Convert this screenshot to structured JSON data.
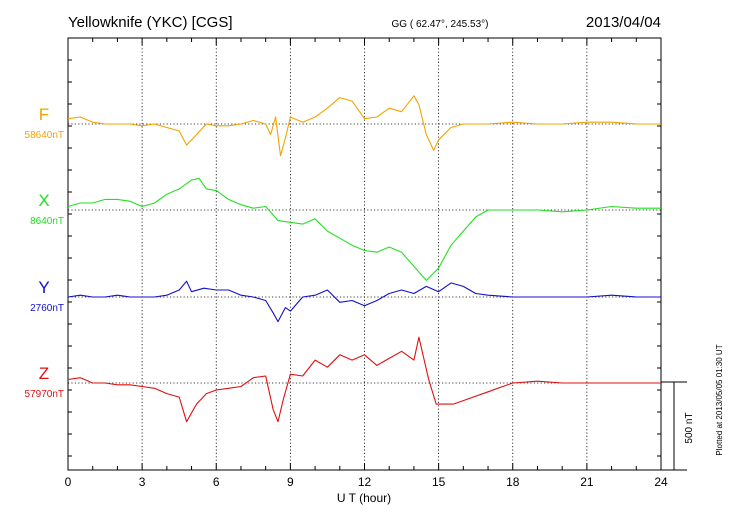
{
  "header": {
    "station": "Yellowknife (YKC)  [CGS]",
    "coords": "GG ( 62.47°, 245.53°)",
    "date": "2013/04/04"
  },
  "plotted_note": "Plotted at 2013/05/05 01:30 UT",
  "scale_bar_label": "500 nT",
  "chart_data": {
    "type": "line",
    "xlabel": "U T (hour)",
    "xlim": [
      0,
      24
    ],
    "x_ticks": [
      "0",
      "3",
      "6",
      "9",
      "12",
      "15",
      "18",
      "21",
      "24"
    ],
    "y_unit": "nT",
    "scale_bar_nT": 500,
    "grid": true,
    "series": [
      {
        "name": "F",
        "baseline_label": "58640nT",
        "color": "#f4a300",
        "x": [
          0,
          0.5,
          1,
          1.5,
          2,
          2.5,
          3,
          3.5,
          4,
          4.5,
          4.8,
          5.2,
          5.6,
          6,
          6.5,
          7,
          7.5,
          8,
          8.2,
          8.4,
          8.6,
          8.8,
          9,
          9.5,
          10,
          10.5,
          11,
          11.5,
          12,
          12.5,
          13,
          13.5,
          14,
          14.2,
          14.5,
          14.8,
          15,
          15.5,
          16,
          17,
          18,
          19,
          20,
          21,
          22,
          23,
          24
        ],
        "values": [
          30,
          40,
          10,
          0,
          0,
          0,
          -10,
          0,
          -20,
          -40,
          -120,
          -60,
          0,
          -10,
          -10,
          0,
          20,
          0,
          -60,
          40,
          -180,
          -80,
          40,
          10,
          40,
          90,
          150,
          130,
          30,
          40,
          90,
          70,
          160,
          110,
          -60,
          -150,
          -90,
          -20,
          0,
          0,
          10,
          0,
          0,
          10,
          10,
          0,
          0
        ]
      },
      {
        "name": "X",
        "baseline_label": "8640nT",
        "color": "#22e022",
        "x": [
          0,
          0.5,
          1,
          1.5,
          2,
          2.5,
          3,
          3.5,
          4,
          4.5,
          5,
          5.3,
          5.6,
          6,
          6.5,
          7,
          7.5,
          8,
          8.5,
          9,
          9.5,
          10,
          10.5,
          11,
          11.5,
          12,
          12.5,
          13,
          13.5,
          14,
          14.5,
          15,
          15.5,
          16,
          16.5,
          17,
          18,
          19,
          20,
          21,
          22,
          23,
          24
        ],
        "values": [
          20,
          40,
          40,
          60,
          60,
          50,
          20,
          40,
          90,
          120,
          170,
          180,
          120,
          110,
          60,
          30,
          10,
          20,
          -60,
          -70,
          -80,
          -50,
          -120,
          -160,
          -200,
          -230,
          -240,
          -210,
          -240,
          -320,
          -400,
          -330,
          -200,
          -120,
          -40,
          0,
          0,
          0,
          -10,
          0,
          20,
          10,
          10
        ]
      },
      {
        "name": "Y",
        "baseline_label": "2760nT",
        "color": "#1010cc",
        "x": [
          0,
          0.5,
          1,
          1.5,
          2,
          2.5,
          3,
          3.5,
          4,
          4.5,
          4.8,
          5,
          5.5,
          6,
          6.5,
          7,
          7.5,
          8,
          8.3,
          8.5,
          8.8,
          9,
          9.5,
          10,
          10.5,
          11,
          11.5,
          12,
          12.5,
          13,
          13.5,
          14,
          14.5,
          15,
          15.5,
          16,
          16.5,
          17,
          18,
          19,
          20,
          21,
          22,
          23,
          24
        ],
        "values": [
          0,
          10,
          0,
          0,
          10,
          0,
          0,
          0,
          10,
          40,
          90,
          30,
          50,
          40,
          40,
          10,
          0,
          -20,
          -90,
          -140,
          -60,
          -80,
          0,
          10,
          40,
          -30,
          -20,
          -50,
          -20,
          20,
          40,
          20,
          60,
          30,
          80,
          60,
          20,
          10,
          0,
          0,
          0,
          0,
          10,
          0,
          0
        ]
      },
      {
        "name": "Z",
        "baseline_label": "57970nT",
        "color": "#e01010",
        "x": [
          0,
          0.5,
          1,
          1.5,
          2,
          2.5,
          3,
          3.5,
          4,
          4.5,
          4.8,
          5.2,
          5.6,
          6,
          6.5,
          7,
          7.5,
          8,
          8.3,
          8.5,
          8.7,
          9,
          9.5,
          10,
          10.5,
          11,
          11.5,
          12,
          12.5,
          13,
          13.5,
          14,
          14.2,
          14.6,
          14.9,
          15.2,
          15.6,
          16,
          17,
          18,
          19,
          20,
          21,
          22,
          23,
          24
        ],
        "values": [
          20,
          30,
          0,
          0,
          -10,
          -10,
          -20,
          -30,
          -60,
          -80,
          -220,
          -120,
          -60,
          -40,
          -30,
          -20,
          30,
          40,
          -150,
          -220,
          -100,
          50,
          40,
          130,
          90,
          160,
          130,
          160,
          100,
          140,
          180,
          130,
          260,
          20,
          -120,
          -120,
          -120,
          -100,
          -50,
          0,
          10,
          0,
          0,
          0,
          0,
          0
        ]
      }
    ]
  }
}
